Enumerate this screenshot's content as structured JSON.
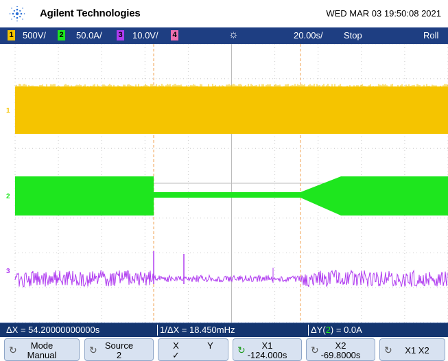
{
  "header": {
    "brand": "Agilent Technologies",
    "datetime": "WED MAR 03 19:50:08 2021",
    "logo_icon": "agilent-spark-icon"
  },
  "status": {
    "channels": [
      {
        "num": "1",
        "scale": "500V/",
        "color": "#f5c400"
      },
      {
        "num": "2",
        "scale": "50.0A/",
        "color": "#1ee61e"
      },
      {
        "num": "3",
        "scale": "10.0V/",
        "color": "#b03cf0"
      },
      {
        "num": "4",
        "scale": "",
        "color": "#f070b0"
      }
    ],
    "trigger_icon": "trigger-sun-icon",
    "timebase": "20.00s/",
    "run_state": "Stop",
    "mode": "Roll"
  },
  "markers": {
    "ch1": "1",
    "ch2": "2",
    "ch3": "3"
  },
  "measurements": {
    "delta_x": "ΔX = 54.20000000000s",
    "inv_delta_x": "1/ΔX = 18.450mHz",
    "delta_y_prefix": "ΔY(",
    "delta_y_channel": "2",
    "delta_y_suffix": ") = 0.0A"
  },
  "softkeys": [
    {
      "label": "Mode",
      "value": "Manual"
    },
    {
      "label": "Source",
      "value": "2"
    },
    {
      "label": "X",
      "value": "✓"
    },
    {
      "label": "Y",
      "value": ""
    },
    {
      "label": "X1",
      "value": "-124.000s"
    },
    {
      "label": "X2",
      "value": "-69.8000s"
    },
    {
      "label": "X1 X2",
      "value": ""
    }
  ]
}
